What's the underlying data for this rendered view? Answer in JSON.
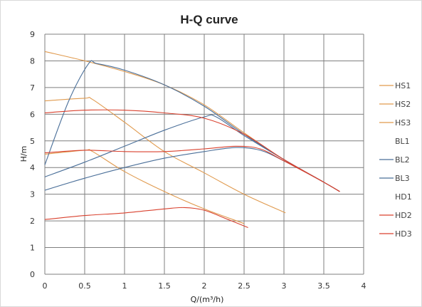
{
  "chart_data": {
    "type": "line",
    "title": "H-Q  curve",
    "xlabel": "Q/(m³/h)",
    "ylabel": "H/m",
    "xlim": [
      0,
      4
    ],
    "ylim": [
      0,
      9
    ],
    "xticks": [
      "0",
      "0.5",
      "1",
      "1.5",
      "2",
      "2.5",
      "3",
      "3.5",
      "4"
    ],
    "yticks": [
      "0",
      "1",
      "2",
      "3",
      "4",
      "5",
      "6",
      "7",
      "8",
      "9"
    ],
    "grid": true,
    "legend_position": "right",
    "series": [
      {
        "name": "HS1",
        "color": "#e09a4e",
        "x": [
          0,
          0.5,
          1,
          1.5,
          2,
          2.5,
          3,
          3.5,
          3.7
        ],
        "y": [
          8.35,
          8.0,
          7.6,
          7.1,
          6.35,
          5.3,
          4.3,
          3.45,
          3.1
        ]
      },
      {
        "name": "HS2",
        "color": "#e09a4e",
        "x": [
          0,
          0.5,
          0.6,
          1,
          1.5,
          2,
          2.5,
          3.02
        ],
        "y": [
          6.5,
          6.6,
          6.55,
          5.7,
          4.6,
          3.8,
          3.0,
          2.3
        ]
      },
      {
        "name": "HS3",
        "color": "#e09a4e",
        "x": [
          0,
          0.5,
          0.6,
          1,
          1.5,
          2,
          2.5
        ],
        "y": [
          4.5,
          4.65,
          4.6,
          3.85,
          3.1,
          2.45,
          1.9
        ]
      },
      {
        "name": "BL1",
        "color": "#ffffff",
        "x": [],
        "y": []
      },
      {
        "name": "BL2",
        "color": "#4a6f99",
        "x": [
          0,
          0.3,
          0.55,
          0.65,
          1,
          1.5,
          2,
          2.5,
          3,
          3.5,
          3.7
        ],
        "y": [
          4.1,
          6.5,
          7.9,
          7.9,
          7.65,
          7.1,
          6.3,
          5.25,
          4.3,
          3.45,
          3.1
        ]
      },
      {
        "name": "BL3",
        "color": "#4a6f99",
        "x": [
          0,
          0.5,
          1,
          1.5,
          2,
          2.15,
          2.5,
          3,
          3.5,
          3.7
        ],
        "y": [
          3.65,
          4.2,
          4.8,
          5.4,
          5.9,
          5.9,
          5.2,
          4.3,
          3.45,
          3.1
        ]
      },
      {
        "name": "",
        "color": "#4a6f99",
        "x": [
          0,
          0.5,
          1,
          1.5,
          2,
          2.4,
          2.7,
          3,
          3.5,
          3.7
        ],
        "y": [
          3.15,
          3.6,
          4.0,
          4.35,
          4.6,
          4.75,
          4.65,
          4.25,
          3.45,
          3.1
        ]
      },
      {
        "name": "HD1",
        "color": "#ffffff",
        "x": [],
        "y": []
      },
      {
        "name": "HD2",
        "color": "#d9412e",
        "x": [
          0,
          0.5,
          1,
          1.5,
          2,
          2.5,
          3,
          3.5,
          3.7
        ],
        "y": [
          6.05,
          6.15,
          6.15,
          6.05,
          5.85,
          5.25,
          4.3,
          3.45,
          3.1
        ]
      },
      {
        "name": "HD3",
        "color": "#d9412e",
        "x": [
          0,
          0.5,
          1,
          1.5,
          2,
          2.4,
          2.7,
          3,
          3.5,
          3.7
        ],
        "y": [
          4.55,
          4.65,
          4.6,
          4.6,
          4.7,
          4.8,
          4.7,
          4.25,
          3.45,
          3.1
        ]
      },
      {
        "name": "",
        "color": "#d9412e",
        "x": [
          0,
          0.5,
          1,
          1.5,
          1.75,
          2,
          2.3,
          2.55
        ],
        "y": [
          2.05,
          2.2,
          2.3,
          2.45,
          2.5,
          2.4,
          2.05,
          1.75
        ]
      }
    ]
  }
}
